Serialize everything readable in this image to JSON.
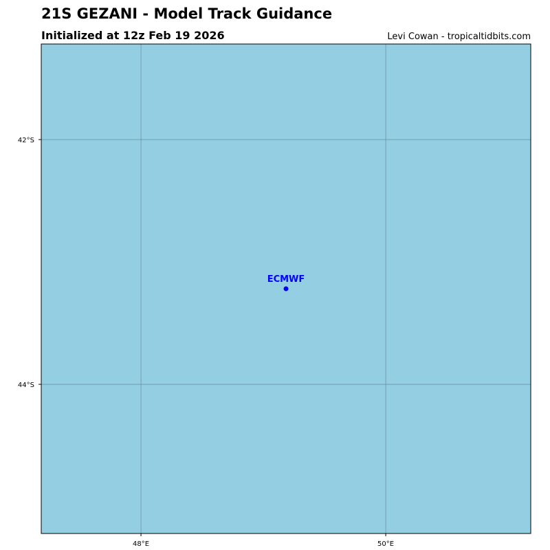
{
  "header": {
    "title": "21S GEZANI - Model Track Guidance",
    "subtitle": "Initialized at 12z Feb 19 2026",
    "credit": "Levi Cowan - tropicaltidbits.com"
  },
  "map": {
    "xlim": [
      47.185,
      51.185
    ],
    "ylim": [
      -45.219,
      -41.219
    ],
    "xticks": [
      {
        "value": 48,
        "label": "48°E"
      },
      {
        "value": 50,
        "label": "50°E"
      }
    ],
    "yticks": [
      {
        "value": -42,
        "label": "42°S"
      },
      {
        "value": -44,
        "label": "44°S"
      }
    ],
    "ocean_color": "#94cee3",
    "grid": true,
    "points": [
      {
        "name": "ECMWF",
        "lon": 49.185,
        "lat": -43.219,
        "color": "#0000ff"
      }
    ]
  }
}
